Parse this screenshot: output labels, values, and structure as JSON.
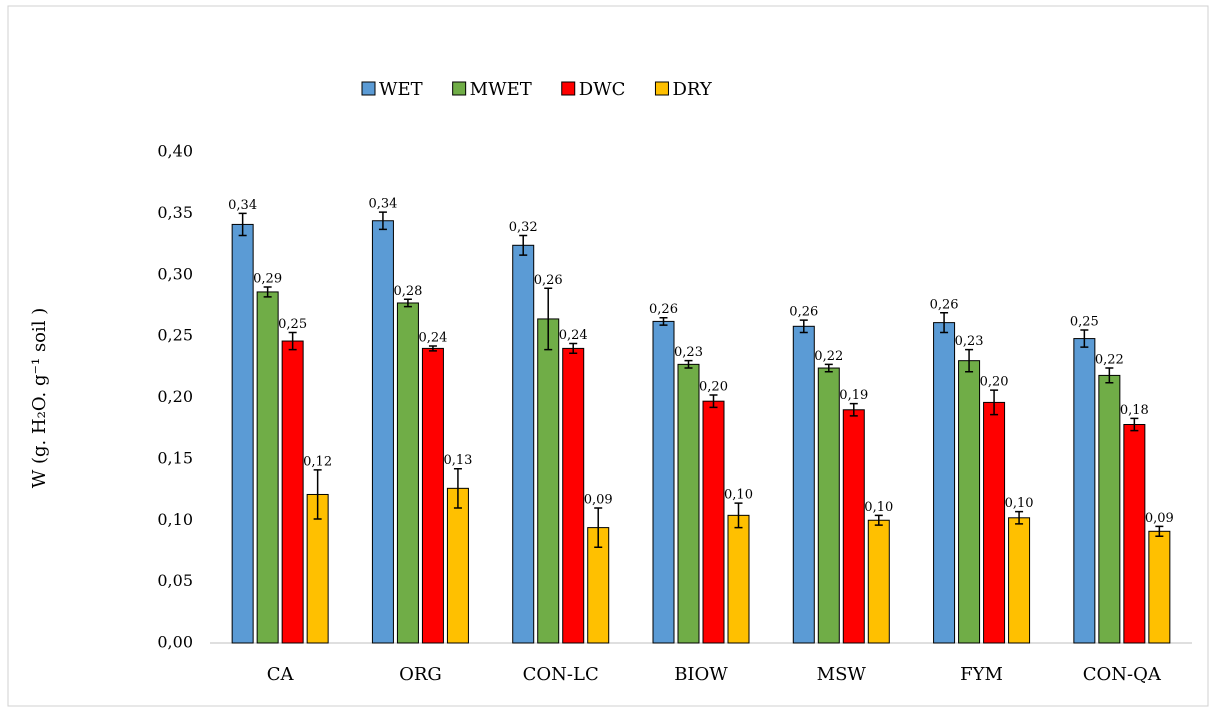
{
  "chart_data": {
    "type": "bar",
    "y_label": "W (g. H₂O. g⁻¹ soil )",
    "categories": [
      "CA",
      "ORG",
      "CON-LC",
      "BIOW",
      "MSW",
      "FYM",
      "CON-QA"
    ],
    "series": [
      {
        "name": "WET",
        "color": "#5b9bd5",
        "values": [
          0.341,
          0.344,
          0.324,
          0.262,
          0.258,
          0.261,
          0.248
        ],
        "errors": [
          0.009,
          0.007,
          0.008,
          0.003,
          0.005,
          0.008,
          0.007
        ],
        "value_labels": [
          "0,34",
          "0,34",
          "0,32",
          "0,26",
          "0,26",
          "0,26",
          "0,25"
        ]
      },
      {
        "name": "MWET",
        "color": "#70ad47",
        "values": [
          0.286,
          0.277,
          0.264,
          0.227,
          0.224,
          0.23,
          0.218
        ],
        "errors": [
          0.004,
          0.003,
          0.025,
          0.003,
          0.003,
          0.009,
          0.006
        ],
        "value_labels": [
          "0,29",
          "0,28",
          "0,26",
          "0,23",
          "0,22",
          "0,23",
          "0,22"
        ]
      },
      {
        "name": "DWC",
        "color": "#ff0000",
        "values": [
          0.246,
          0.24,
          0.24,
          0.197,
          0.19,
          0.196,
          0.178
        ],
        "errors": [
          0.007,
          0.002,
          0.004,
          0.005,
          0.005,
          0.01,
          0.005
        ],
        "value_labels": [
          "0,25",
          "0,24",
          "0,24",
          "0,20",
          "0,19",
          "0,20",
          "0,18"
        ]
      },
      {
        "name": "DRY",
        "color": "#ffc000",
        "values": [
          0.121,
          0.126,
          0.094,
          0.104,
          0.1,
          0.102,
          0.091
        ],
        "errors": [
          0.02,
          0.016,
          0.016,
          0.01,
          0.004,
          0.005,
          0.004
        ],
        "value_labels": [
          "0,12",
          "0,13",
          "0,09",
          "0,10",
          "0,10",
          "0,10",
          "0,09"
        ]
      }
    ],
    "ylim": [
      0,
      0.4
    ],
    "yticks": [
      {
        "value": 0,
        "label": "0,00"
      },
      {
        "value": 0.05,
        "label": "0,05"
      },
      {
        "value": 0.1,
        "label": "0,10"
      },
      {
        "value": 0.15,
        "label": "0,15"
      },
      {
        "value": 0.2,
        "label": "0,20"
      },
      {
        "value": 0.25,
        "label": "0,25"
      },
      {
        "value": 0.3,
        "label": "0,30"
      },
      {
        "value": 0.35,
        "label": "0,35"
      },
      {
        "value": 0.4,
        "label": "0,40"
      }
    ],
    "legend": "top"
  }
}
